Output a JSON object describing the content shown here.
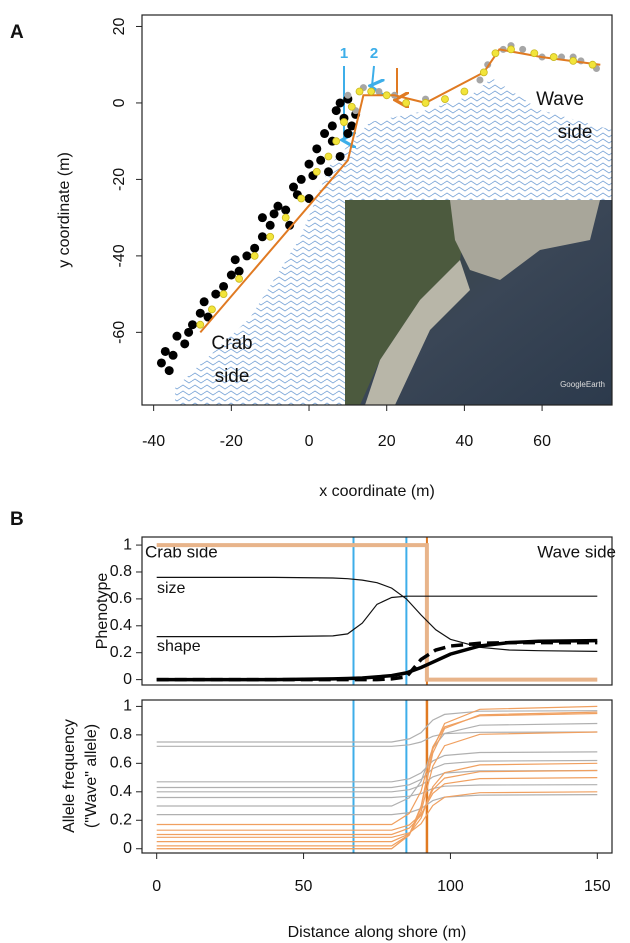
{
  "chart_data": [
    {
      "type": "scatter",
      "panel_label": "A",
      "xlabel": "x coordinate (m)",
      "ylabel": "y coordinate (m)",
      "xlim": [
        -43,
        78
      ],
      "ylim": [
        -79,
        23
      ],
      "xticks": [
        -40,
        -20,
        0,
        20,
        40,
        60
      ],
      "yticks": [
        -60,
        -40,
        -20,
        0,
        20
      ],
      "annotations": {
        "arrow_1": "1",
        "arrow_2": "2",
        "wave_side": [
          "Wave",
          "side"
        ],
        "crab_side": [
          "Crab",
          "side"
        ],
        "credit": "GoogleEarth"
      },
      "series": [
        {
          "style": "point",
          "color": "#000000",
          "x": [
            -38,
            -37,
            -35,
            -34,
            -32,
            -30,
            -28,
            -26,
            -24,
            -22,
            -20,
            -18,
            -16,
            -14,
            -12,
            -12,
            -10,
            -8,
            -6,
            -4,
            -2,
            0,
            2,
            3,
            4,
            6,
            7,
            8,
            10,
            12,
            10,
            5,
            8,
            0,
            -5,
            -36,
            -31,
            -27,
            -19,
            -9,
            -3,
            1,
            6,
            9,
            11
          ],
          "values": [
            -68,
            -65,
            -66,
            -61,
            -63,
            -58,
            -55,
            -56,
            -50,
            -48,
            -45,
            -44,
            -40,
            -38,
            -35,
            -30,
            -32,
            -27,
            -28,
            -22,
            -20,
            -16,
            -12,
            -15,
            -8,
            -6,
            -2,
            0,
            1,
            -3,
            -8,
            -18,
            -14,
            -25,
            -32,
            -70,
            -60,
            -52,
            -41,
            -29,
            -24,
            -19,
            -10,
            -4,
            -6
          ]
        },
        {
          "style": "point",
          "color": "#a6a6a6",
          "x": [
            10,
            14,
            18,
            22,
            30,
            40,
            46,
            50,
            55,
            60,
            65,
            70,
            74,
            12,
            44,
            52,
            68
          ],
          "values": [
            2,
            4,
            3,
            2,
            1,
            3,
            10,
            14,
            14,
            12,
            12,
            11,
            9,
            -2,
            6,
            15,
            12
          ]
        },
        {
          "style": "line",
          "color": "#e07a22",
          "x": [
            -28,
            10,
            14,
            22,
            30,
            45,
            49,
            60,
            75
          ],
          "values": [
            -60,
            -15,
            2,
            2,
            0,
            8,
            14,
            12,
            10
          ]
        },
        {
          "style": "point",
          "color": "#f2e43a",
          "x": [
            -28,
            -25,
            -22,
            -18,
            -14,
            -10,
            -6,
            -2,
            2,
            5,
            7,
            9,
            11,
            13,
            16,
            20,
            25,
            30,
            35,
            40,
            45,
            48,
            52,
            58,
            63,
            68,
            73
          ],
          "values": [
            -58,
            -54,
            -50,
            -46,
            -40,
            -35,
            -30,
            -25,
            -18,
            -14,
            -10,
            -5,
            -1,
            3,
            3,
            2,
            0,
            0,
            1,
            3,
            8,
            13,
            14,
            13,
            12,
            11,
            10
          ]
        }
      ]
    },
    {
      "type": "line",
      "panel_label": "B",
      "ylabel": "Phenotype",
      "xlim": [
        -5,
        155
      ],
      "ylim": [
        -0.04,
        1.06
      ],
      "yticks": [
        0,
        0.2,
        0.4,
        0.6,
        0.8,
        1
      ],
      "annotations": {
        "crab_side": "Crab side",
        "wave_side": "Wave side",
        "size": "size",
        "shape": "shape"
      },
      "vlines": [
        67,
        85,
        92
      ],
      "vline_colors": [
        "#3daee9",
        "#3daee9",
        "#e07a22"
      ],
      "series": [
        {
          "color": "#e8b48a",
          "width": 4,
          "x": [
            0,
            92,
            92,
            150
          ],
          "values": [
            1,
            1,
            0,
            0
          ]
        },
        {
          "color": "#111111",
          "width": 1.2,
          "x": [
            0,
            20,
            40,
            60,
            65,
            70,
            75,
            80,
            85,
            90,
            95,
            100,
            110,
            120,
            130,
            150
          ],
          "values": [
            0.76,
            0.76,
            0.76,
            0.755,
            0.75,
            0.74,
            0.72,
            0.68,
            0.6,
            0.48,
            0.37,
            0.3,
            0.24,
            0.22,
            0.215,
            0.21
          ]
        },
        {
          "color": "#111111",
          "width": 1.2,
          "x": [
            0,
            20,
            40,
            60,
            65,
            70,
            75,
            80,
            85,
            90,
            95,
            100,
            110,
            120,
            130,
            150
          ],
          "values": [
            0.32,
            0.32,
            0.32,
            0.325,
            0.34,
            0.42,
            0.56,
            0.61,
            0.62,
            0.62,
            0.62,
            0.62,
            0.62,
            0.62,
            0.62,
            0.62
          ]
        },
        {
          "color": "#000000",
          "width": 3.5,
          "x": [
            0,
            20,
            40,
            60,
            65,
            70,
            75,
            80,
            85,
            90,
            95,
            100,
            110,
            120,
            130,
            150
          ],
          "values": [
            0,
            0,
            0,
            0.005,
            0.008,
            0.012,
            0.02,
            0.03,
            0.05,
            0.09,
            0.14,
            0.19,
            0.25,
            0.275,
            0.285,
            0.29
          ]
        },
        {
          "color": "#000000",
          "width": 3.5,
          "dashed": true,
          "x": [
            0,
            20,
            40,
            60,
            65,
            70,
            75,
            80,
            85,
            90,
            95,
            100,
            110,
            120,
            130,
            150
          ],
          "values": [
            0,
            0,
            0,
            0,
            0,
            0,
            0,
            0.005,
            0.02,
            0.15,
            0.22,
            0.25,
            0.27,
            0.275,
            0.275,
            0.275
          ]
        }
      ]
    },
    {
      "type": "line",
      "ylabel": [
        "Allele frequency",
        "(\"Wave\" allele)"
      ],
      "xlabel": "Distance along shore (m)",
      "xlim": [
        -5,
        155
      ],
      "ylim": [
        -0.03,
        1.045
      ],
      "xticks": [
        0,
        50,
        100,
        150
      ],
      "yticks": [
        0,
        0.2,
        0.4,
        0.6,
        0.8,
        1
      ],
      "vlines": [
        67,
        85,
        92
      ],
      "vline_colors": [
        "#3daee9",
        "#3daee9",
        "#e07a22"
      ],
      "x": [
        0,
        80,
        86,
        90,
        92,
        94,
        98,
        110,
        150
      ],
      "series": [
        {
          "color": "#b0b0b0",
          "values": [
            0.75,
            0.75,
            0.772,
            0.816,
            0.86,
            0.904,
            0.944,
            0.966,
            0.97
          ]
        },
        {
          "color": "#b0b0b0",
          "values": [
            0.72,
            0.72,
            0.73,
            0.75,
            0.77,
            0.79,
            0.808,
            0.818,
            0.82
          ]
        },
        {
          "color": "#b0b0b0",
          "values": [
            0.47,
            0.47,
            0.491,
            0.533,
            0.575,
            0.617,
            0.655,
            0.676,
            0.68
          ]
        },
        {
          "color": "#b0b0b0",
          "values": [
            0.43,
            0.43,
            0.449,
            0.487,
            0.525,
            0.563,
            0.597,
            0.616,
            0.62
          ]
        },
        {
          "color": "#b0b0b0",
          "values": [
            0.4,
            0.4,
            0.415,
            0.445,
            0.475,
            0.505,
            0.532,
            0.547,
            0.55
          ]
        },
        {
          "color": "#b0b0b0",
          "values": [
            0.36,
            0.36,
            0.369,
            0.387,
            0.405,
            0.423,
            0.439,
            0.448,
            0.45
          ]
        },
        {
          "color": "#b0b0b0",
          "values": [
            0.24,
            0.24,
            0.254,
            0.282,
            0.31,
            0.338,
            0.363,
            0.377,
            0.38
          ]
        },
        {
          "color": "#b0b0b0",
          "values": [
            0.3,
            0.3,
            0.358,
            0.474,
            0.59,
            0.706,
            0.81,
            0.868,
            0.88
          ]
        },
        {
          "color": "#f0a060",
          "values": [
            0,
            0,
            0.1,
            0.3,
            0.5,
            0.7,
            0.88,
            0.98,
            1
          ]
        },
        {
          "color": "#f0a060",
          "values": [
            0.02,
            0.02,
            0.1,
            0.26,
            0.42,
            0.58,
            0.724,
            0.804,
            0.82
          ]
        },
        {
          "color": "#f0a060",
          "values": [
            0.05,
            0.05,
            0.105,
            0.215,
            0.325,
            0.435,
            0.534,
            0.589,
            0.6
          ]
        },
        {
          "color": "#f0a060",
          "values": [
            0.1,
            0.1,
            0.145,
            0.235,
            0.325,
            0.415,
            0.496,
            0.541,
            0.55
          ]
        },
        {
          "color": "#f0a060",
          "values": [
            0.13,
            0.13,
            0.167,
            0.241,
            0.315,
            0.389,
            0.456,
            0.493,
            0.5
          ]
        },
        {
          "color": "#f0a060",
          "values": [
            0.17,
            0.17,
            0.248,
            0.404,
            0.56,
            0.716,
            0.856,
            0.934,
            0.95
          ]
        },
        {
          "color": "#f0a060",
          "values": [
            0,
            0,
            0.096,
            0.288,
            0.48,
            0.672,
            0.845,
            0.941,
            0.96
          ]
        },
        {
          "color": "#f0a060",
          "values": [
            0.08,
            0.08,
            0.112,
            0.176,
            0.24,
            0.304,
            0.362,
            0.394,
            0.4
          ]
        }
      ]
    }
  ]
}
